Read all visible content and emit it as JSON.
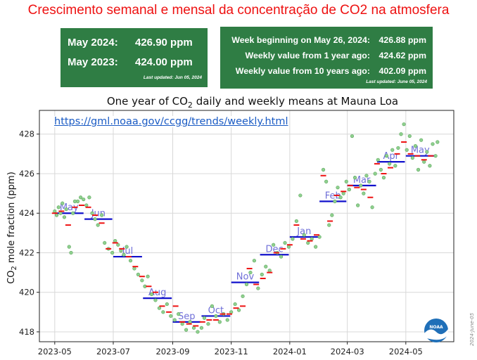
{
  "headline": "Crescimento semanal e mensal da concentração de CO2 na atmosfera",
  "monthly_box": {
    "rows": [
      {
        "label": "May 2024:",
        "value": "426.90 ppm"
      },
      {
        "label": "May 2023:",
        "value": "424.00 ppm"
      }
    ],
    "updated": "Last updated: Jun 05, 2024"
  },
  "weekly_box": {
    "rows": [
      {
        "label": "Week beginning on May 26, 2024:",
        "value": "426.88 ppm"
      },
      {
        "label": "Weekly value from 1 year ago:",
        "value": "424.62 ppm"
      },
      {
        "label": "Weekly value from 10 years ago:",
        "value": "402.09 ppm"
      }
    ],
    "updated": "Last updated: June 05, 2024"
  },
  "link_text": "https://gml.noaa.gov/ccgg/trends/weekly.html",
  "side_note": "2024-June-05",
  "logo_text": "NOAA",
  "colors": {
    "box_bg": "#2f7d44",
    "headline": "#ee1111",
    "daily": "#8fd08f",
    "weekly": "#ee1111",
    "monthly": "#1111cc",
    "month_label": "#6f6fd8"
  },
  "chart_data": {
    "type": "scatter",
    "title": "One year of CO₂ daily and weekly means at Mauna Loa",
    "title_parts": {
      "pre": "One year of CO",
      "sub": "2",
      "post": " daily and weekly means at Mauna Loa"
    },
    "ylabel": "CO₂ mole fraction (ppm)",
    "ylabel_parts": {
      "pre": "CO",
      "sub": "2",
      "post": " mole fraction (ppm)"
    },
    "xlim": [
      "2023-04-15",
      "2024-06-20"
    ],
    "ylim": [
      417.5,
      429.2
    ],
    "x_ticks": [
      "2023-05-01",
      "2023-07-01",
      "2023-09-01",
      "2023-11-01",
      "2024-01-01",
      "2024-03-01",
      "2024-05-01"
    ],
    "x_tick_labels": [
      "2023-05",
      "2023-07",
      "2023-09",
      "2023-11",
      "2024-01",
      "2024-03",
      "2024-05"
    ],
    "y_ticks": [
      418,
      420,
      422,
      424,
      426,
      428
    ],
    "grid": true,
    "monthly_means": [
      {
        "label": "May",
        "start": "2023-05-01",
        "end": "2023-05-31",
        "value": 424.0
      },
      {
        "label": "Jun",
        "start": "2023-06-01",
        "end": "2023-06-30",
        "value": 423.7
      },
      {
        "label": "Jul",
        "start": "2023-07-01",
        "end": "2023-07-31",
        "value": 421.8
      },
      {
        "label": "Aug",
        "start": "2023-08-01",
        "end": "2023-08-31",
        "value": 419.7
      },
      {
        "label": "Sep",
        "start": "2023-09-01",
        "end": "2023-09-30",
        "value": 418.5
      },
      {
        "label": "Oct",
        "start": "2023-10-01",
        "end": "2023-10-31",
        "value": 418.8
      },
      {
        "label": "Nov",
        "start": "2023-11-01",
        "end": "2023-11-30",
        "value": 420.5
      },
      {
        "label": "Dec",
        "start": "2023-12-01",
        "end": "2023-12-31",
        "value": 421.9
      },
      {
        "label": "Jan",
        "start": "2024-01-01",
        "end": "2024-01-31",
        "value": 422.8
      },
      {
        "label": "Feb",
        "start": "2024-02-01",
        "end": "2024-02-29",
        "value": 424.6
      },
      {
        "label": "Mar",
        "start": "2024-03-01",
        "end": "2024-03-31",
        "value": 425.4
      },
      {
        "label": "Apr",
        "start": "2024-04-01",
        "end": "2024-04-30",
        "value": 426.6
      },
      {
        "label": "May",
        "start": "2024-05-01",
        "end": "2024-05-31",
        "value": 426.9
      }
    ],
    "weekly_means": [
      {
        "x": "2023-05-01",
        "y": 424.0
      },
      {
        "x": "2023-05-08",
        "y": 424.1
      },
      {
        "x": "2023-05-15",
        "y": 423.4
      },
      {
        "x": "2023-05-22",
        "y": 424.3
      },
      {
        "x": "2023-05-29",
        "y": 424.4
      },
      {
        "x": "2023-06-05",
        "y": 424.3
      },
      {
        "x": "2023-06-12",
        "y": 423.9
      },
      {
        "x": "2023-06-19",
        "y": 423.5
      },
      {
        "x": "2023-06-26",
        "y": 422.2
      },
      {
        "x": "2023-07-03",
        "y": 422.5
      },
      {
        "x": "2023-07-10",
        "y": 422.2
      },
      {
        "x": "2023-07-17",
        "y": 421.8
      },
      {
        "x": "2023-07-24",
        "y": 421.3
      },
      {
        "x": "2023-07-31",
        "y": 420.8
      },
      {
        "x": "2023-08-07",
        "y": 420.3
      },
      {
        "x": "2023-08-14",
        "y": 420.0
      },
      {
        "x": "2023-08-21",
        "y": 419.3
      },
      {
        "x": "2023-08-28",
        "y": 419.0
      },
      {
        "x": "2023-09-04",
        "y": 419.3
      },
      {
        "x": "2023-09-11",
        "y": 418.5
      },
      {
        "x": "2023-09-18",
        "y": 418.4
      },
      {
        "x": "2023-09-25",
        "y": 418.3
      },
      {
        "x": "2023-10-02",
        "y": 418.5
      },
      {
        "x": "2023-10-09",
        "y": 418.6
      },
      {
        "x": "2023-10-16",
        "y": 418.6
      },
      {
        "x": "2023-10-23",
        "y": 418.9
      },
      {
        "x": "2023-10-30",
        "y": 418.9
      },
      {
        "x": "2023-11-06",
        "y": 419.2
      },
      {
        "x": "2023-11-13",
        "y": 419.3
      },
      {
        "x": "2023-11-20",
        "y": 421.2
      },
      {
        "x": "2023-11-27",
        "y": 420.4
      },
      {
        "x": "2023-12-04",
        "y": 420.7
      },
      {
        "x": "2023-12-11",
        "y": 421.0
      },
      {
        "x": "2023-12-18",
        "y": 422.0
      },
      {
        "x": "2023-12-25",
        "y": 422.2
      },
      {
        "x": "2024-01-01",
        "y": 422.4
      },
      {
        "x": "2024-01-08",
        "y": 423.4
      },
      {
        "x": "2024-01-15",
        "y": 422.7
      },
      {
        "x": "2024-01-22",
        "y": 422.6
      },
      {
        "x": "2024-01-29",
        "y": 422.9
      },
      {
        "x": "2024-02-05",
        "y": 425.9
      },
      {
        "x": "2024-02-12",
        "y": 423.6
      },
      {
        "x": "2024-02-19",
        "y": 424.9
      },
      {
        "x": "2024-02-26",
        "y": 425.1
      },
      {
        "x": "2024-03-04",
        "y": 425.4
      },
      {
        "x": "2024-03-11",
        "y": 425.3
      },
      {
        "x": "2024-03-18",
        "y": 425.2
      },
      {
        "x": "2024-03-25",
        "y": 424.8
      },
      {
        "x": "2024-04-01",
        "y": 426.5
      },
      {
        "x": "2024-04-08",
        "y": 426.0
      },
      {
        "x": "2024-04-15",
        "y": 426.3
      },
      {
        "x": "2024-04-22",
        "y": 427.0
      },
      {
        "x": "2024-04-29",
        "y": 427.6
      },
      {
        "x": "2024-05-06",
        "y": 427.0
      },
      {
        "x": "2024-05-13",
        "y": 426.9
      },
      {
        "x": "2024-05-20",
        "y": 426.7
      },
      {
        "x": "2024-05-27",
        "y": 426.9
      }
    ],
    "daily_means": [
      {
        "x": "2023-05-01",
        "y": 424.1
      },
      {
        "x": "2023-05-03",
        "y": 423.9
      },
      {
        "x": "2023-05-05",
        "y": 424.3
      },
      {
        "x": "2023-05-07",
        "y": 424.0
      },
      {
        "x": "2023-05-09",
        "y": 424.5
      },
      {
        "x": "2023-05-11",
        "y": 423.8
      },
      {
        "x": "2023-05-13",
        "y": 424.2
      },
      {
        "x": "2023-05-16",
        "y": 422.3
      },
      {
        "x": "2023-05-18",
        "y": 422.0
      },
      {
        "x": "2023-05-20",
        "y": 424.0
      },
      {
        "x": "2023-05-22",
        "y": 424.6
      },
      {
        "x": "2023-05-25",
        "y": 424.6
      },
      {
        "x": "2023-05-28",
        "y": 424.8
      },
      {
        "x": "2023-05-31",
        "y": 424.7
      },
      {
        "x": "2023-06-03",
        "y": 424.4
      },
      {
        "x": "2023-06-06",
        "y": 424.8
      },
      {
        "x": "2023-06-09",
        "y": 424.0
      },
      {
        "x": "2023-06-12",
        "y": 423.7
      },
      {
        "x": "2023-06-15",
        "y": 423.4
      },
      {
        "x": "2023-06-19",
        "y": 423.9
      },
      {
        "x": "2023-06-22",
        "y": 422.5
      },
      {
        "x": "2023-06-26",
        "y": 422.2
      },
      {
        "x": "2023-06-30",
        "y": 422.0
      },
      {
        "x": "2023-07-03",
        "y": 422.6
      },
      {
        "x": "2023-07-06",
        "y": 422.4
      },
      {
        "x": "2023-07-09",
        "y": 422.1
      },
      {
        "x": "2023-07-12",
        "y": 421.9
      },
      {
        "x": "2023-07-15",
        "y": 422.3
      },
      {
        "x": "2023-07-19",
        "y": 421.6
      },
      {
        "x": "2023-07-23",
        "y": 421.2
      },
      {
        "x": "2023-07-27",
        "y": 420.9
      },
      {
        "x": "2023-07-31",
        "y": 420.6
      },
      {
        "x": "2023-08-03",
        "y": 420.3
      },
      {
        "x": "2023-08-06",
        "y": 420.8
      },
      {
        "x": "2023-08-10",
        "y": 419.9
      },
      {
        "x": "2023-08-14",
        "y": 419.6
      },
      {
        "x": "2023-08-18",
        "y": 419.2
      },
      {
        "x": "2023-08-22",
        "y": 419.0
      },
      {
        "x": "2023-08-26",
        "y": 419.4
      },
      {
        "x": "2023-08-30",
        "y": 418.8
      },
      {
        "x": "2023-09-03",
        "y": 418.6
      },
      {
        "x": "2023-09-07",
        "y": 418.9
      },
      {
        "x": "2023-09-11",
        "y": 418.4
      },
      {
        "x": "2023-09-15",
        "y": 418.1
      },
      {
        "x": "2023-09-19",
        "y": 418.5
      },
      {
        "x": "2023-09-23",
        "y": 418.2
      },
      {
        "x": "2023-09-27",
        "y": 418.0
      },
      {
        "x": "2023-10-01",
        "y": 418.2
      },
      {
        "x": "2023-10-04",
        "y": 418.7
      },
      {
        "x": "2023-10-08",
        "y": 418.4
      },
      {
        "x": "2023-10-12",
        "y": 419.3
      },
      {
        "x": "2023-10-16",
        "y": 418.8
      },
      {
        "x": "2023-10-20",
        "y": 418.5
      },
      {
        "x": "2023-10-24",
        "y": 418.9
      },
      {
        "x": "2023-10-28",
        "y": 418.6
      },
      {
        "x": "2023-11-01",
        "y": 419.0
      },
      {
        "x": "2023-11-05",
        "y": 419.4
      },
      {
        "x": "2023-11-09",
        "y": 419.1
      },
      {
        "x": "2023-11-13",
        "y": 419.8
      },
      {
        "x": "2023-11-17",
        "y": 420.4
      },
      {
        "x": "2023-11-21",
        "y": 421.0
      },
      {
        "x": "2023-11-25",
        "y": 421.6
      },
      {
        "x": "2023-11-29",
        "y": 420.2
      },
      {
        "x": "2023-12-03",
        "y": 420.9
      },
      {
        "x": "2023-12-07",
        "y": 421.3
      },
      {
        "x": "2023-12-11",
        "y": 421.1
      },
      {
        "x": "2023-12-15",
        "y": 422.4
      },
      {
        "x": "2023-12-19",
        "y": 422.0
      },
      {
        "x": "2023-12-23",
        "y": 421.8
      },
      {
        "x": "2023-12-27",
        "y": 422.5
      },
      {
        "x": "2023-12-31",
        "y": 422.3
      },
      {
        "x": "2024-01-04",
        "y": 422.7
      },
      {
        "x": "2024-01-08",
        "y": 423.6
      },
      {
        "x": "2024-01-12",
        "y": 424.9
      },
      {
        "x": "2024-01-16",
        "y": 422.9
      },
      {
        "x": "2024-01-20",
        "y": 422.5
      },
      {
        "x": "2024-01-24",
        "y": 422.7
      },
      {
        "x": "2024-01-28",
        "y": 422.3
      },
      {
        "x": "2024-02-01",
        "y": 422.8
      },
      {
        "x": "2024-02-05",
        "y": 426.2
      },
      {
        "x": "2024-02-08",
        "y": 425.6
      },
      {
        "x": "2024-02-11",
        "y": 423.4
      },
      {
        "x": "2024-02-14",
        "y": 423.9
      },
      {
        "x": "2024-02-17",
        "y": 424.6
      },
      {
        "x": "2024-02-20",
        "y": 425.3
      },
      {
        "x": "2024-02-23",
        "y": 424.8
      },
      {
        "x": "2024-02-26",
        "y": 425.0
      },
      {
        "x": "2024-02-29",
        "y": 425.6
      },
      {
        "x": "2024-03-03",
        "y": 425.2
      },
      {
        "x": "2024-03-06",
        "y": 427.9
      },
      {
        "x": "2024-03-09",
        "y": 425.8
      },
      {
        "x": "2024-03-12",
        "y": 424.4
      },
      {
        "x": "2024-03-15",
        "y": 425.4
      },
      {
        "x": "2024-03-18",
        "y": 425.0
      },
      {
        "x": "2024-03-21",
        "y": 425.9
      },
      {
        "x": "2024-03-24",
        "y": 425.6
      },
      {
        "x": "2024-03-27",
        "y": 424.3
      },
      {
        "x": "2024-03-30",
        "y": 426.0
      },
      {
        "x": "2024-04-02",
        "y": 426.7
      },
      {
        "x": "2024-04-05",
        "y": 426.2
      },
      {
        "x": "2024-04-08",
        "y": 425.8
      },
      {
        "x": "2024-04-11",
        "y": 426.9
      },
      {
        "x": "2024-04-14",
        "y": 426.5
      },
      {
        "x": "2024-04-17",
        "y": 427.2
      },
      {
        "x": "2024-04-20",
        "y": 426.4
      },
      {
        "x": "2024-04-23",
        "y": 427.3
      },
      {
        "x": "2024-04-26",
        "y": 428.0
      },
      {
        "x": "2024-04-29",
        "y": 428.5
      },
      {
        "x": "2024-05-02",
        "y": 427.2
      },
      {
        "x": "2024-05-05",
        "y": 427.9
      },
      {
        "x": "2024-05-08",
        "y": 426.8
      },
      {
        "x": "2024-05-11",
        "y": 427.4
      },
      {
        "x": "2024-05-14",
        "y": 426.2
      },
      {
        "x": "2024-05-17",
        "y": 427.7
      },
      {
        "x": "2024-05-20",
        "y": 426.6
      },
      {
        "x": "2024-05-23",
        "y": 427.1
      },
      {
        "x": "2024-05-26",
        "y": 426.4
      },
      {
        "x": "2024-05-29",
        "y": 427.5
      },
      {
        "x": "2024-06-01",
        "y": 426.9
      },
      {
        "x": "2024-06-03",
        "y": 427.6
      }
    ]
  }
}
